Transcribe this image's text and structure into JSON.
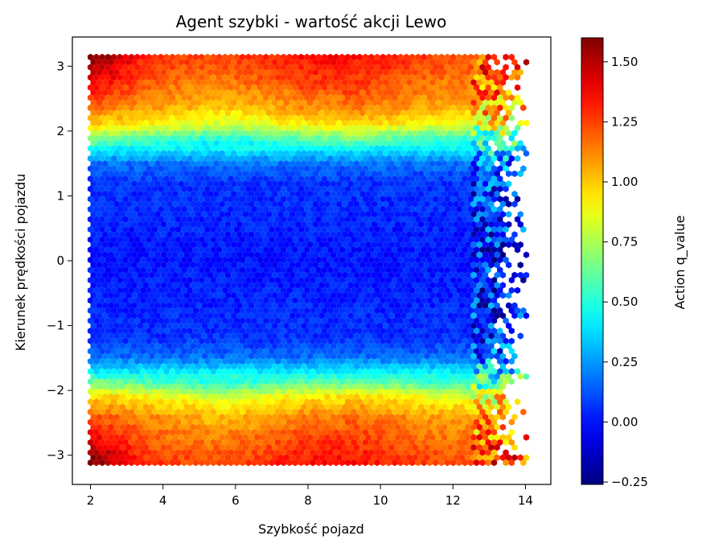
{
  "chart_data": {
    "type": "heatmap",
    "subtype": "hexbin",
    "title": "Agent szybki - wartość akcji Lewo",
    "xlabel": "Szybkość pojazd",
    "ylabel": "Kierunek prędkości pojazdu",
    "xlim": [
      1.5,
      14.7
    ],
    "ylim": [
      -3.45,
      3.45
    ],
    "data_extent": {
      "x": [
        2.0,
        14.1
      ],
      "y": [
        -3.14,
        3.14
      ]
    },
    "x_ticks": [
      2,
      4,
      6,
      8,
      10,
      12,
      14
    ],
    "y_ticks": [
      -3,
      -2,
      -1,
      0,
      1,
      2,
      3
    ],
    "colormap": "jet",
    "colorbar": {
      "label": "Action q_value",
      "min": -0.26,
      "max": 1.6,
      "ticks": [
        -0.25,
        0.0,
        0.25,
        0.5,
        0.75,
        1.0,
        1.25,
        1.5
      ]
    },
    "value_profile_by_heading": [
      {
        "y": -3.14,
        "q": 1.3
      },
      {
        "y": -2.8,
        "q": 1.22
      },
      {
        "y": -2.4,
        "q": 1.12
      },
      {
        "y": -2.1,
        "q": 0.92
      },
      {
        "y": -1.9,
        "q": 0.62
      },
      {
        "y": -1.7,
        "q": 0.4
      },
      {
        "y": -1.5,
        "q": 0.18
      },
      {
        "y": -1.2,
        "q": 0.06
      },
      {
        "y": 0.0,
        "q": 0.0
      },
      {
        "y": 1.2,
        "q": 0.06
      },
      {
        "y": 1.5,
        "q": 0.18
      },
      {
        "y": 1.7,
        "q": 0.4
      },
      {
        "y": 1.9,
        "q": 0.62
      },
      {
        "y": 2.1,
        "q": 0.92
      },
      {
        "y": 2.4,
        "q": 1.12
      },
      {
        "y": 2.8,
        "q": 1.22
      },
      {
        "y": 3.14,
        "q": 1.3
      }
    ],
    "notes": "Highest values (~1.5) near speed 2-3 at headings close to ±3; low values (~0) for headings between -1.5 and 1.5 across all speeds; sparse noisy bins beyond speed 13."
  }
}
